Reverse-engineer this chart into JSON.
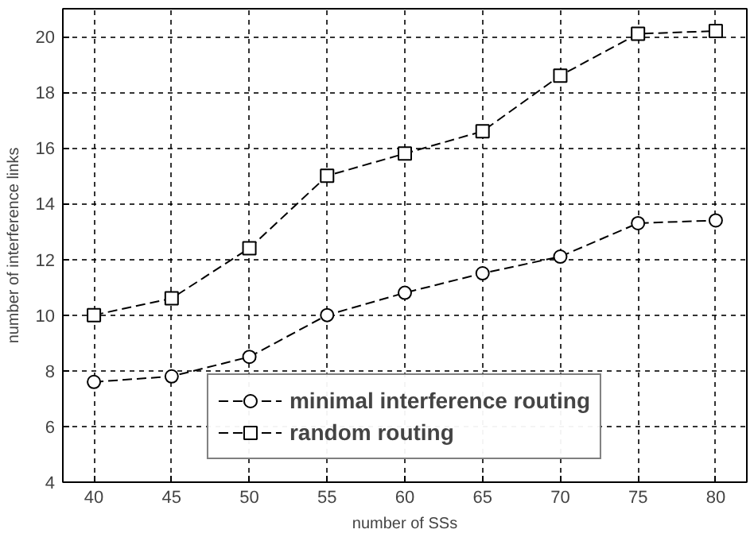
{
  "chart_data": {
    "type": "line",
    "xlabel": "number of SSs",
    "ylabel": "number of interference links",
    "x": [
      40,
      45,
      50,
      55,
      60,
      65,
      70,
      75,
      80
    ],
    "series": [
      {
        "name": "minimal interference routing",
        "color": "#000000",
        "marker": "circle",
        "line_style": "dashed",
        "values": [
          7.6,
          7.8,
          8.5,
          10,
          10.8,
          11.5,
          12.1,
          13.3,
          13.4
        ]
      },
      {
        "name": "random routing",
        "color": "#000000",
        "marker": "square",
        "line_style": "dashed",
        "values": [
          10,
          10.6,
          12.4,
          15,
          15.8,
          16.6,
          18.6,
          20.1,
          20.2
        ]
      }
    ],
    "xlim": [
      38,
      82
    ],
    "ylim": [
      4,
      21
    ],
    "xticks": [
      40,
      45,
      50,
      55,
      60,
      65,
      70,
      75,
      80
    ],
    "yticks": [
      4,
      6,
      8,
      10,
      12,
      14,
      16,
      18,
      20
    ],
    "grid": true,
    "legend": "bottom"
  }
}
